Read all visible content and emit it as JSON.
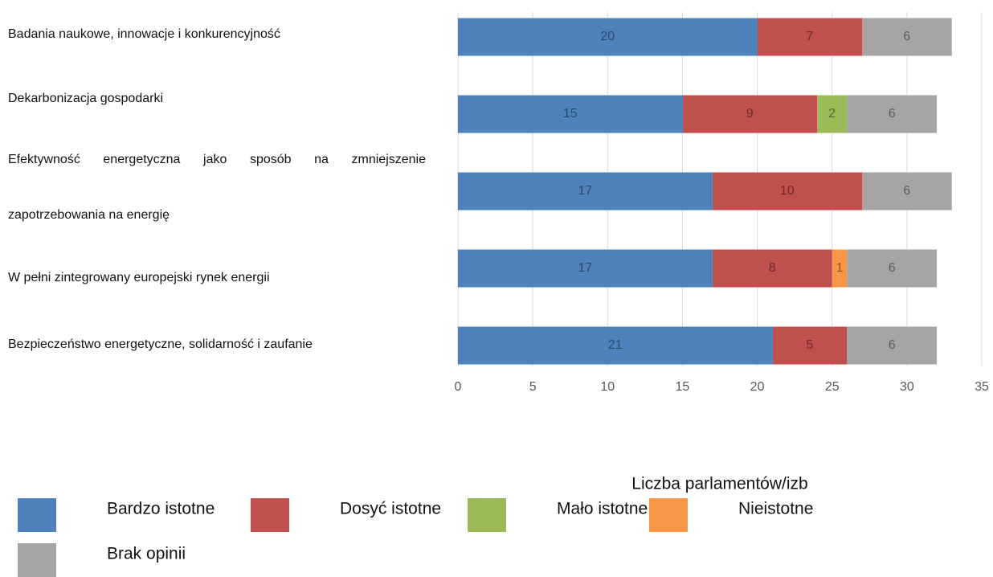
{
  "chart_data": {
    "type": "stacked-barh",
    "categories": [
      "Badania naukowe, innowacje i konkurencyjność",
      "Dekarbonizacja gospodarki",
      "Efektywność energetyczna jako sposób na zmniejszenie zapotrzebowania na energię",
      "W pełni zintegrowany europejski rynek energii",
      "Bezpieczeństwo energetyczne, solidarność i zaufanie"
    ],
    "series": [
      {
        "name": "Bardzo istotne",
        "color": "#4f81bd",
        "values": [
          20,
          15,
          17,
          17,
          21
        ]
      },
      {
        "name": "Dosyć istotne",
        "color": "#c0504d",
        "values": [
          7,
          9,
          10,
          8,
          5
        ]
      },
      {
        "name": "Mało istotne",
        "color": "#9bbb59",
        "values": [
          null,
          2,
          null,
          null,
          null
        ]
      },
      {
        "name": "Nieistotne",
        "color": "#f79646",
        "values": [
          null,
          null,
          null,
          1,
          null
        ]
      },
      {
        "name": "Brak opinii",
        "color": "#a5a5a5",
        "values": [
          6,
          6,
          6,
          6,
          6
        ]
      }
    ],
    "xlabel": "Liczba parlamentów/izb",
    "xlim": [
      0,
      35
    ],
    "xticks": [
      0,
      5,
      10,
      15,
      20,
      25,
      30,
      35
    ],
    "grid": true
  }
}
